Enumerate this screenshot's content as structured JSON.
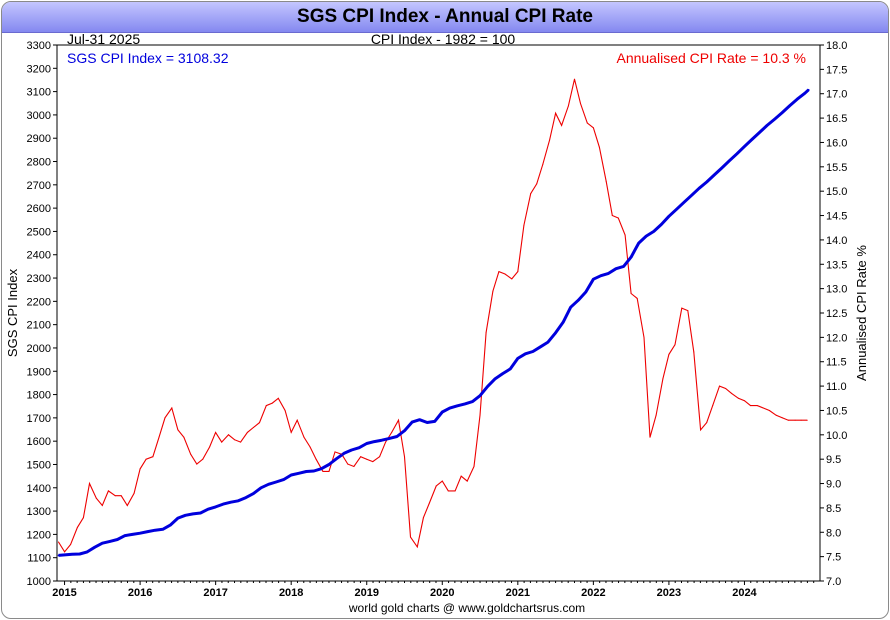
{
  "chart_data": {
    "type": "line",
    "title": "SGS CPI Index - Annual CPI Rate",
    "date_label": "Jul-31  2025",
    "subtitle": "CPI Index - 1982 = 100",
    "left_annotation": "SGS CPI Index = 3108.32",
    "right_annotation": "Annualised CPI Rate = 10.3 %",
    "ylabel_left": "SGS CPI Index",
    "ylabel_right": "Annualised CPI Rate %",
    "footer": "world gold charts @ www.goldchartsrus.com",
    "xlim": [
      2014.9,
      2025.0
    ],
    "ylim_left": [
      1000,
      3300
    ],
    "ylim_right": [
      7.0,
      18.0
    ],
    "y_ticks_left": [
      1000,
      1100,
      1200,
      1300,
      1400,
      1500,
      1600,
      1700,
      1800,
      1900,
      2000,
      2100,
      2200,
      2300,
      2400,
      2500,
      2600,
      2700,
      2800,
      2900,
      3000,
      3100,
      3200,
      3300
    ],
    "y_ticks_right": [
      "7.0",
      "7.5",
      "8.0",
      "8.5",
      "9.0",
      "9.5",
      "10.0",
      "10.5",
      "11.0",
      "11.5",
      "12.0",
      "12.5",
      "13.0",
      "13.5",
      "14.0",
      "14.5",
      "15.0",
      "15.5",
      "16.0",
      "16.5",
      "17.0",
      "17.5",
      "18.0"
    ],
    "x_ticks": [
      2015,
      2016,
      2017,
      2018,
      2019,
      2020,
      2021,
      2022,
      2023,
      2024
    ],
    "grid": false,
    "series": [
      {
        "name": "SGS CPI Index",
        "axis": "left",
        "color": "#0000dd",
        "points": [
          [
            2014.92,
            1110
          ],
          [
            2015.0,
            1112
          ],
          [
            2015.1,
            1115
          ],
          [
            2015.2,
            1116
          ],
          [
            2015.3,
            1125
          ],
          [
            2015.4,
            1145
          ],
          [
            2015.5,
            1162
          ],
          [
            2015.6,
            1170
          ],
          [
            2015.7,
            1178
          ],
          [
            2015.8,
            1195
          ],
          [
            2015.9,
            1200
          ],
          [
            2016.0,
            1205
          ],
          [
            2016.1,
            1212
          ],
          [
            2016.2,
            1218
          ],
          [
            2016.3,
            1222
          ],
          [
            2016.4,
            1240
          ],
          [
            2016.5,
            1270
          ],
          [
            2016.6,
            1282
          ],
          [
            2016.7,
            1288
          ],
          [
            2016.8,
            1292
          ],
          [
            2016.9,
            1308
          ],
          [
            2017.0,
            1318
          ],
          [
            2017.1,
            1330
          ],
          [
            2017.2,
            1338
          ],
          [
            2017.3,
            1344
          ],
          [
            2017.4,
            1358
          ],
          [
            2017.5,
            1375
          ],
          [
            2017.6,
            1400
          ],
          [
            2017.7,
            1415
          ],
          [
            2017.8,
            1425
          ],
          [
            2017.9,
            1435
          ],
          [
            2018.0,
            1455
          ],
          [
            2018.1,
            1462
          ],
          [
            2018.2,
            1470
          ],
          [
            2018.3,
            1472
          ],
          [
            2018.4,
            1482
          ],
          [
            2018.5,
            1500
          ],
          [
            2018.6,
            1525
          ],
          [
            2018.7,
            1548
          ],
          [
            2018.8,
            1562
          ],
          [
            2018.9,
            1572
          ],
          [
            2019.0,
            1590
          ],
          [
            2019.1,
            1598
          ],
          [
            2019.2,
            1604
          ],
          [
            2019.3,
            1612
          ],
          [
            2019.4,
            1620
          ],
          [
            2019.5,
            1645
          ],
          [
            2019.6,
            1682
          ],
          [
            2019.7,
            1692
          ],
          [
            2019.8,
            1680
          ],
          [
            2019.9,
            1685
          ],
          [
            2020.0,
            1725
          ],
          [
            2020.1,
            1742
          ],
          [
            2020.2,
            1752
          ],
          [
            2020.3,
            1760
          ],
          [
            2020.4,
            1770
          ],
          [
            2020.5,
            1795
          ],
          [
            2020.6,
            1835
          ],
          [
            2020.7,
            1868
          ],
          [
            2020.8,
            1890
          ],
          [
            2020.9,
            1910
          ],
          [
            2021.0,
            1955
          ],
          [
            2021.1,
            1975
          ],
          [
            2021.2,
            1985
          ],
          [
            2021.3,
            2005
          ],
          [
            2021.4,
            2025
          ],
          [
            2021.5,
            2065
          ],
          [
            2021.6,
            2110
          ],
          [
            2021.7,
            2175
          ],
          [
            2021.8,
            2205
          ],
          [
            2021.9,
            2240
          ],
          [
            2022.0,
            2295
          ],
          [
            2022.1,
            2310
          ],
          [
            2022.2,
            2320
          ],
          [
            2022.3,
            2340
          ],
          [
            2022.4,
            2350
          ],
          [
            2022.5,
            2390
          ],
          [
            2022.6,
            2450
          ],
          [
            2022.7,
            2480
          ],
          [
            2022.8,
            2500
          ],
          [
            2022.9,
            2530
          ],
          [
            2023.0,
            2565
          ],
          [
            2023.1,
            2595
          ],
          [
            2023.2,
            2625
          ],
          [
            2023.3,
            2655
          ],
          [
            2023.4,
            2685
          ],
          [
            2023.5,
            2712
          ],
          [
            2023.6,
            2742
          ],
          [
            2023.7,
            2772
          ],
          [
            2023.8,
            2803
          ],
          [
            2023.9,
            2833
          ],
          [
            2024.0,
            2865
          ],
          [
            2024.1,
            2895
          ],
          [
            2024.2,
            2925
          ],
          [
            2024.3,
            2955
          ],
          [
            2024.4,
            2982
          ],
          [
            2024.5,
            3010
          ],
          [
            2024.6,
            3040
          ],
          [
            2024.7,
            3068
          ],
          [
            2024.8,
            3093
          ],
          [
            2024.85,
            3108
          ]
        ]
      },
      {
        "name": "Annualised CPI Rate",
        "axis": "right",
        "color": "#ee0000",
        "points": [
          [
            2014.92,
            7.8
          ],
          [
            2015.0,
            7.6
          ],
          [
            2015.08,
            7.75
          ],
          [
            2015.17,
            8.1
          ],
          [
            2015.25,
            8.3
          ],
          [
            2015.33,
            9.0
          ],
          [
            2015.42,
            8.7
          ],
          [
            2015.5,
            8.55
          ],
          [
            2015.58,
            8.85
          ],
          [
            2015.67,
            8.75
          ],
          [
            2015.75,
            8.75
          ],
          [
            2015.83,
            8.55
          ],
          [
            2015.92,
            8.8
          ],
          [
            2016.0,
            9.3
          ],
          [
            2016.08,
            9.5
          ],
          [
            2016.17,
            9.55
          ],
          [
            2016.25,
            9.95
          ],
          [
            2016.33,
            10.35
          ],
          [
            2016.42,
            10.55
          ],
          [
            2016.5,
            10.1
          ],
          [
            2016.58,
            9.95
          ],
          [
            2016.67,
            9.6
          ],
          [
            2016.75,
            9.4
          ],
          [
            2016.83,
            9.5
          ],
          [
            2016.92,
            9.75
          ],
          [
            2017.0,
            10.05
          ],
          [
            2017.08,
            9.85
          ],
          [
            2017.17,
            10.0
          ],
          [
            2017.25,
            9.9
          ],
          [
            2017.33,
            9.85
          ],
          [
            2017.42,
            10.05
          ],
          [
            2017.5,
            10.15
          ],
          [
            2017.58,
            10.25
          ],
          [
            2017.67,
            10.6
          ],
          [
            2017.75,
            10.65
          ],
          [
            2017.83,
            10.75
          ],
          [
            2017.92,
            10.5
          ],
          [
            2018.0,
            10.05
          ],
          [
            2018.08,
            10.3
          ],
          [
            2018.17,
            9.95
          ],
          [
            2018.25,
            9.75
          ],
          [
            2018.33,
            9.5
          ],
          [
            2018.42,
            9.25
          ],
          [
            2018.5,
            9.25
          ],
          [
            2018.58,
            9.65
          ],
          [
            2018.67,
            9.6
          ],
          [
            2018.75,
            9.4
          ],
          [
            2018.83,
            9.35
          ],
          [
            2018.92,
            9.55
          ],
          [
            2019.0,
            9.5
          ],
          [
            2019.08,
            9.45
          ],
          [
            2019.17,
            9.55
          ],
          [
            2019.25,
            9.85
          ],
          [
            2019.33,
            10.05
          ],
          [
            2019.42,
            10.3
          ],
          [
            2019.5,
            9.55
          ],
          [
            2019.58,
            7.9
          ],
          [
            2019.67,
            7.7
          ],
          [
            2019.75,
            8.3
          ],
          [
            2019.83,
            8.6
          ],
          [
            2019.92,
            8.95
          ],
          [
            2020.0,
            9.05
          ],
          [
            2020.08,
            8.85
          ],
          [
            2020.17,
            8.85
          ],
          [
            2020.25,
            9.15
          ],
          [
            2020.33,
            9.05
          ],
          [
            2020.42,
            9.35
          ],
          [
            2020.5,
            10.4
          ],
          [
            2020.58,
            12.1
          ],
          [
            2020.67,
            12.95
          ],
          [
            2020.75,
            13.35
          ],
          [
            2020.83,
            13.3
          ],
          [
            2020.92,
            13.2
          ],
          [
            2021.0,
            13.35
          ],
          [
            2021.08,
            14.3
          ],
          [
            2021.17,
            14.95
          ],
          [
            2021.25,
            15.15
          ],
          [
            2021.33,
            15.55
          ],
          [
            2021.42,
            16.05
          ],
          [
            2021.5,
            16.6
          ],
          [
            2021.58,
            16.35
          ],
          [
            2021.67,
            16.75
          ],
          [
            2021.75,
            17.3
          ],
          [
            2021.83,
            16.8
          ],
          [
            2021.92,
            16.4
          ],
          [
            2022.0,
            16.3
          ],
          [
            2022.08,
            15.9
          ],
          [
            2022.17,
            15.2
          ],
          [
            2022.25,
            14.5
          ],
          [
            2022.33,
            14.45
          ],
          [
            2022.42,
            14.1
          ],
          [
            2022.5,
            12.9
          ],
          [
            2022.58,
            12.8
          ],
          [
            2022.67,
            12.0
          ],
          [
            2022.75,
            9.95
          ],
          [
            2022.83,
            10.4
          ],
          [
            2022.92,
            11.15
          ],
          [
            2023.0,
            11.65
          ],
          [
            2023.08,
            11.85
          ],
          [
            2023.17,
            12.6
          ],
          [
            2023.25,
            12.55
          ],
          [
            2023.33,
            11.7
          ],
          [
            2023.42,
            10.1
          ],
          [
            2023.5,
            10.25
          ],
          [
            2023.58,
            10.6
          ],
          [
            2023.67,
            11.0
          ],
          [
            2023.75,
            10.95
          ],
          [
            2023.83,
            10.85
          ],
          [
            2023.92,
            10.75
          ],
          [
            2024.0,
            10.7
          ],
          [
            2024.08,
            10.6
          ],
          [
            2024.17,
            10.6
          ],
          [
            2024.25,
            10.55
          ],
          [
            2024.33,
            10.5
          ],
          [
            2024.42,
            10.4
          ],
          [
            2024.5,
            10.35
          ],
          [
            2024.58,
            10.3
          ],
          [
            2024.67,
            10.3
          ],
          [
            2024.75,
            10.3
          ],
          [
            2024.83,
            10.3
          ]
        ]
      }
    ]
  }
}
